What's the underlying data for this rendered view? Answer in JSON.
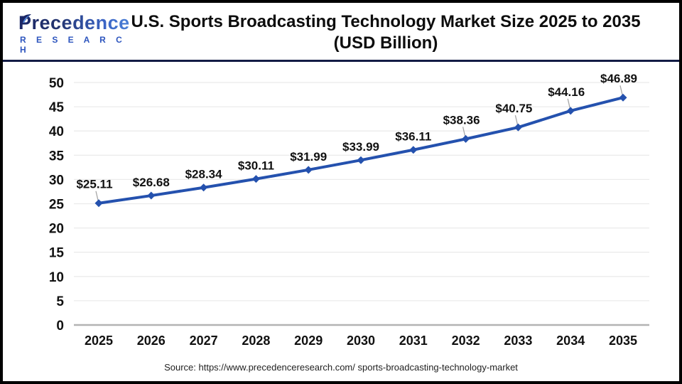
{
  "header": {
    "logo": {
      "primary": "Precedence",
      "secondary": "R E S E A R C H",
      "leaf_icon_color_dark": "#1b2766",
      "leaf_icon_color_light": "#4b82d8"
    },
    "title_line1": "U.S. Sports Broadcasting Technology Market Size 2025 to 2035",
    "title_line2": "(USD Billion)"
  },
  "chart_data": {
    "type": "line",
    "title": "U.S. Sports Broadcasting Technology Market Size 2025 to 2035 (USD Billion)",
    "categories": [
      "2025",
      "2026",
      "2027",
      "2028",
      "2029",
      "2030",
      "2031",
      "2032",
      "2033",
      "2034",
      "2035"
    ],
    "values": [
      25.11,
      26.68,
      28.34,
      30.11,
      31.99,
      33.99,
      36.11,
      38.36,
      40.75,
      44.16,
      46.89
    ],
    "point_labels": [
      "$25.11",
      "$26.68",
      "$28.34",
      "$30.11",
      "$31.99",
      "$33.99",
      "$36.11",
      "$38.36",
      "$40.75",
      "$44.16",
      "$46.89"
    ],
    "label_leader_flags": [
      true,
      false,
      false,
      false,
      false,
      false,
      false,
      true,
      true,
      true,
      true
    ],
    "xlabel": "",
    "ylabel": "",
    "ylim": [
      0,
      50
    ],
    "ytick_labels": [
      "0",
      "5",
      "10",
      "15",
      "20",
      "25",
      "30",
      "35",
      "40",
      "45",
      "50"
    ],
    "grid": true,
    "legend": "none",
    "line_color": "#2451ae",
    "marker_color": "#2451ae",
    "gridline_color": "#ebebeb",
    "axis_line_color": "#b3b3b3",
    "leader_line_color": "#a6a6a6",
    "tick_label_color": "#111111",
    "data_label_color": "#111111"
  },
  "footer": {
    "source": "Source: https://www.precedenceresearch.com/ sports-broadcasting-technology-market"
  }
}
